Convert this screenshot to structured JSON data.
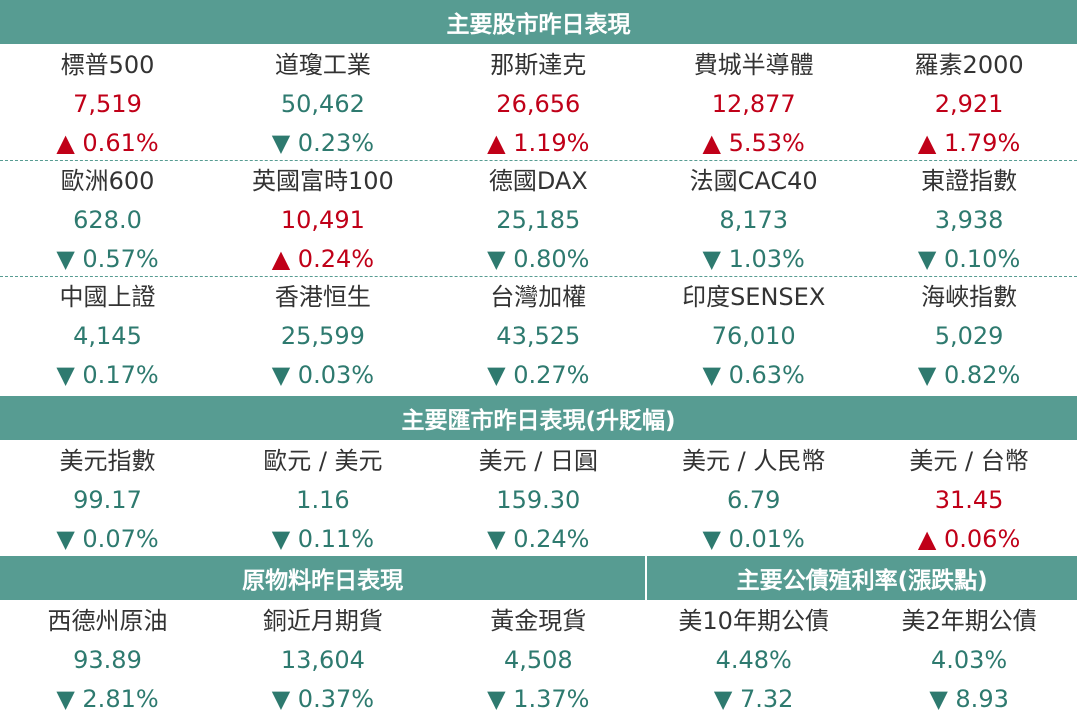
{
  "sections": [
    {
      "title": "主要股市昨日表現",
      "groups": [
        [
          {
            "name": "標普500",
            "value": "7,519",
            "change": "▲ 0.61%",
            "color": "#c00018"
          },
          {
            "name": "道瓊工業",
            "value": "50,462",
            "change": "▼ 0.23%",
            "color": "#2e7a6f"
          },
          {
            "name": "那斯達克",
            "value": "26,656",
            "change": "▲ 1.19%",
            "color": "#c00018"
          },
          {
            "name": "費城半導體",
            "value": "12,877",
            "change": "▲ 5.53%",
            "color": "#c00018"
          },
          {
            "name": "羅素2000",
            "value": "2,921",
            "change": "▲ 1.79%",
            "color": "#c00018"
          }
        ],
        [
          {
            "name": "歐洲600",
            "value": "628.0",
            "change": "▼ 0.57%",
            "color": "#2e7a6f"
          },
          {
            "name": "英國富時100",
            "value": "10,491",
            "change": "▲ 0.24%",
            "color": "#c00018"
          },
          {
            "name": "德國DAX",
            "value": "25,185",
            "change": "▼ 0.80%",
            "color": "#2e7a6f"
          },
          {
            "name": "法國CAC40",
            "value": "8,173",
            "change": "▼ 1.03%",
            "color": "#2e7a6f"
          },
          {
            "name": "東證指數",
            "value": "3,938",
            "change": "▼ 0.10%",
            "color": "#2e7a6f"
          }
        ],
        [
          {
            "name": "中國上證",
            "value": "4,145",
            "change": "▼ 0.17%",
            "color": "#2e7a6f"
          },
          {
            "name": "香港恒生",
            "value": "25,599",
            "change": "▼ 0.03%",
            "color": "#2e7a6f"
          },
          {
            "name": "台灣加權",
            "value": "43,525",
            "change": "▼ 0.27%",
            "color": "#2e7a6f"
          },
          {
            "name": "印度SENSEX",
            "value": "76,010",
            "change": "▼ 0.63%",
            "color": "#2e7a6f"
          },
          {
            "name": "海峽指數",
            "value": "5,029",
            "change": "▼ 0.82%",
            "color": "#2e7a6f"
          }
        ]
      ]
    },
    {
      "title": "主要匯市昨日表現(升貶幅)",
      "groups": [
        [
          {
            "name": "美元指數",
            "value": "99.17",
            "change": "▼ 0.07%",
            "color": "#2e7a6f"
          },
          {
            "name": "歐元 / 美元",
            "value": "1.16",
            "change": "▼ 0.11%",
            "color": "#2e7a6f"
          },
          {
            "name": "美元 / 日圓",
            "value": "159.30",
            "change": "▼ 0.24%",
            "color": "#2e7a6f"
          },
          {
            "name": "美元 / 人民幣",
            "value": "6.79",
            "change": "▼ 0.01%",
            "color": "#2e7a6f"
          },
          {
            "name": "美元 / 台幣",
            "value": "31.45",
            "change": "▲ 0.06%",
            "color": "#c00018"
          }
        ]
      ]
    },
    {
      "titles": [
        "原物料昨日表現",
        "主要公債殖利率(漲跌點)"
      ],
      "groups": [
        [
          {
            "name": "西德州原油",
            "value": "93.89",
            "change": "▼ 2.81%",
            "color": "#2e7a6f"
          },
          {
            "name": "銅近月期貨",
            "value": "13,604",
            "change": "▼ 0.37%",
            "color": "#2e7a6f"
          },
          {
            "name": "黃金現貨",
            "value": "4,508",
            "change": "▼ 1.37%",
            "color": "#2e7a6f"
          },
          {
            "name": "美10年期公債",
            "value": "4.48%",
            "change": "▼ 7.32",
            "color": "#2e7a6f"
          },
          {
            "name": "美2年期公債",
            "value": "4.03%",
            "change": "▼ 8.93",
            "color": "#2e7a6f"
          }
        ]
      ]
    }
  ]
}
